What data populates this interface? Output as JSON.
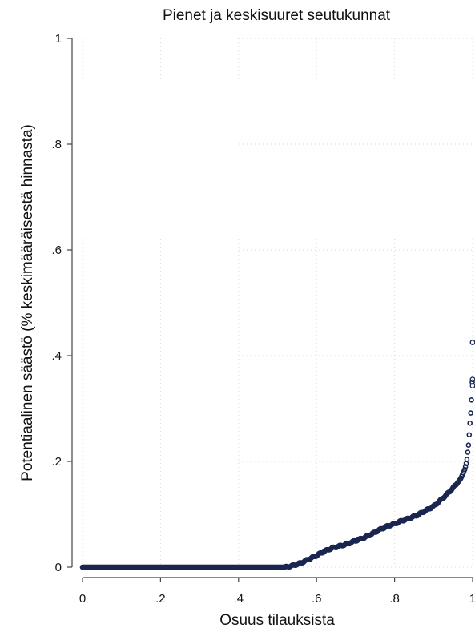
{
  "chart_data": {
    "type": "scatter",
    "title": "Pienet ja keskisuuret seutukunnat",
    "xlabel": "Osuus tilauksista",
    "ylabel": "Potentiaalinen säästö (% keskimääräisestä hinnasta)",
    "xlim": [
      0,
      1
    ],
    "ylim": [
      0,
      1
    ],
    "x_ticks": [
      {
        "value": 0,
        "label": "0"
      },
      {
        "value": 0.2,
        "label": ".2"
      },
      {
        "value": 0.4,
        "label": ".4"
      },
      {
        "value": 0.6,
        "label": ".6"
      },
      {
        "value": 0.8,
        "label": ".8"
      },
      {
        "value": 1,
        "label": "1"
      }
    ],
    "y_ticks": [
      {
        "value": 0,
        "label": "0"
      },
      {
        "value": 0.2,
        "label": ".2"
      },
      {
        "value": 0.4,
        "label": ".4"
      },
      {
        "value": 0.6,
        "label": ".6"
      },
      {
        "value": 0.8,
        "label": ".8"
      },
      {
        "value": 1,
        "label": "1"
      }
    ],
    "grid": true,
    "marker": "hollow-circle",
    "marker_color": "#1a2650",
    "curve": [
      [
        0,
        0
      ],
      [
        0.52,
        0
      ],
      [
        0.54,
        0.003
      ],
      [
        0.56,
        0.008
      ],
      [
        0.58,
        0.015
      ],
      [
        0.6,
        0.022
      ],
      [
        0.62,
        0.03
      ],
      [
        0.64,
        0.036
      ],
      [
        0.66,
        0.04
      ],
      [
        0.68,
        0.044
      ],
      [
        0.7,
        0.05
      ],
      [
        0.72,
        0.055
      ],
      [
        0.74,
        0.062
      ],
      [
        0.76,
        0.07
      ],
      [
        0.78,
        0.077
      ],
      [
        0.8,
        0.082
      ],
      [
        0.82,
        0.088
      ],
      [
        0.84,
        0.093
      ],
      [
        0.86,
        0.099
      ],
      [
        0.88,
        0.107
      ],
      [
        0.9,
        0.115
      ],
      [
        0.92,
        0.128
      ],
      [
        0.94,
        0.142
      ],
      [
        0.96,
        0.158
      ],
      [
        0.97,
        0.168
      ],
      [
        0.98,
        0.185
      ],
      [
        0.985,
        0.2
      ],
      [
        0.99,
        0.235
      ],
      [
        0.993,
        0.27
      ],
      [
        0.996,
        0.3
      ],
      [
        0.998,
        0.33
      ],
      [
        0.999,
        0.35
      ]
    ],
    "extra_points": [
      [
        1.0,
        0.343
      ],
      [
        1.0,
        0.355
      ],
      [
        1.0,
        0.425
      ]
    ]
  }
}
